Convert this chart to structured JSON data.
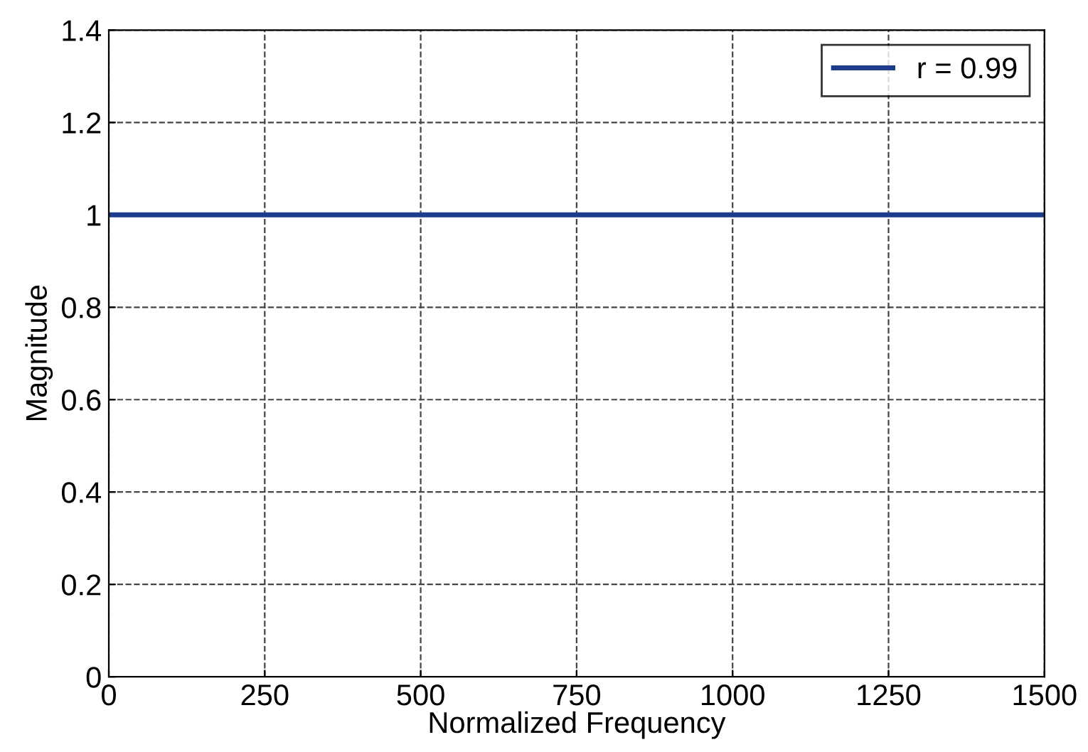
{
  "chart_data": {
    "type": "line",
    "xlabel": "Normalized Frequency",
    "ylabel": "Magnitude",
    "x": [
      0,
      1500
    ],
    "series": [
      {
        "name": "r = 0.99",
        "color": "#1f3c8c",
        "values": [
          1,
          1
        ]
      }
    ],
    "xlim": [
      0,
      1500
    ],
    "xticks": [
      0,
      250,
      500,
      750,
      1000,
      1250,
      1500
    ],
    "ylim": [
      0,
      1.4
    ],
    "yticks": [
      0,
      0.2,
      0.4,
      0.6,
      0.8,
      1,
      1.2,
      1.4
    ],
    "grid": true,
    "legend": "top right",
    "line_style": "solid",
    "marker": "none"
  }
}
